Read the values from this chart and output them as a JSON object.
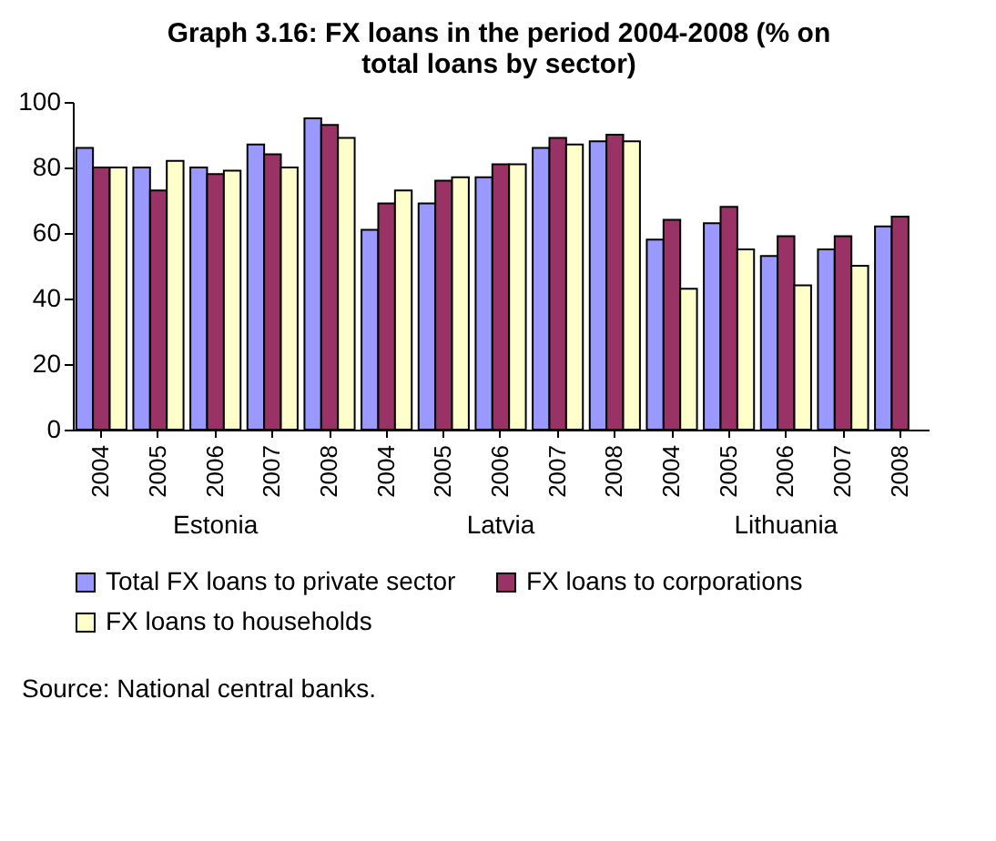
{
  "chart_data": {
    "type": "bar",
    "title": "Graph 3.16: FX loans in the period 2004-2008 (% on total loans by sector)",
    "categories": [
      "2004",
      "2005",
      "2006",
      "2007",
      "2008",
      "2004",
      "2005",
      "2006",
      "2007",
      "2008",
      "2004",
      "2005",
      "2006",
      "2007",
      "2008"
    ],
    "series": [
      {
        "name": "Total FX loans to private sector",
        "color": "#9999ff",
        "values": [
          86,
          80,
          80,
          87,
          95,
          61,
          69,
          77,
          86,
          88,
          58,
          63,
          53,
          55,
          62
        ]
      },
      {
        "name": "FX loans to corporations",
        "color": "#993366",
        "values": [
          80,
          73,
          78,
          84,
          93,
          69,
          76,
          81,
          89,
          90,
          64,
          68,
          59,
          59,
          65
        ]
      },
      {
        "name": "FX loans to households",
        "color": "#ffffcc",
        "values": [
          80,
          82,
          79,
          80,
          89,
          73,
          77,
          81,
          87,
          88,
          43,
          55,
          44,
          50,
          null
        ]
      }
    ],
    "ylim": [
      0,
      100
    ],
    "yticks": [
      0,
      20,
      40,
      60,
      80,
      100
    ],
    "grid": false,
    "legend": "bottom",
    "annotations": [
      "Estonia",
      "Latvia",
      "Lithuania",
      "Source: National central banks."
    ]
  }
}
